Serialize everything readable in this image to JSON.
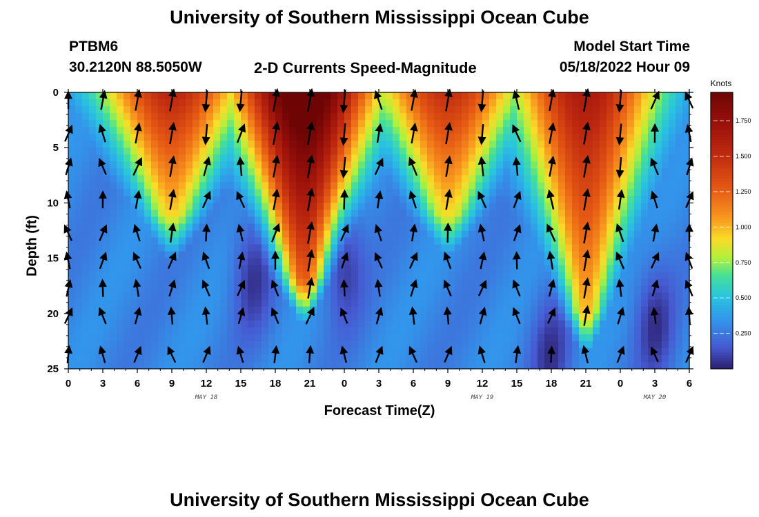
{
  "page": {
    "title_top": "University of Southern Mississippi Ocean Cube",
    "title_bottom": "University of Southern Mississippi Ocean Cube",
    "station": "PTBM6",
    "coords": "30.2120N  88.5050W",
    "plot_title": "2-D Currents Speed-Magnitude",
    "model_start_label": "Model Start Time",
    "model_start_value": "05/18/2022 Hour 09"
  },
  "chart_data": {
    "type": "heatmap",
    "xlabel": "Forecast Time(Z)",
    "ylabel": "Depth (ft)",
    "colorbar_label": "Knots",
    "colorbar_ticks": [
      "0.250",
      "0.500",
      "0.750",
      "1.000",
      "1.250",
      "1.500",
      "1.750"
    ],
    "colorbar_range": [
      0,
      1.95
    ],
    "x_range_hours": [
      0,
      54
    ],
    "x_tick_labels": [
      "0",
      "3",
      "6",
      "9",
      "12",
      "15",
      "18",
      "21",
      "0",
      "3",
      "6",
      "9",
      "12",
      "15",
      "18",
      "21",
      "0",
      "3",
      "6"
    ],
    "date_labels": [
      {
        "hour": 12,
        "text": "MAY 18"
      },
      {
        "hour": 36,
        "text": "MAY 19"
      },
      {
        "hour": 51,
        "text": "MAY 20"
      }
    ],
    "y_range": [
      0,
      25
    ],
    "y_tick_labels": [
      "0",
      "5",
      "10",
      "15",
      "20",
      "25"
    ],
    "arrow_times": [
      0,
      3,
      6,
      9,
      12,
      15,
      18,
      21,
      24,
      27,
      30,
      33,
      36,
      39,
      42,
      45,
      48,
      51,
      54
    ],
    "arrow_depths": [
      0,
      3,
      6,
      9,
      12,
      14.5,
      17,
      19.5,
      23
    ],
    "peaks": [
      {
        "time": 9,
        "max_speed": 1.35,
        "min_depth": 0,
        "max_depth": 11
      },
      {
        "time": 20.5,
        "max_speed": 1.95,
        "min_depth": 0,
        "max_depth": 17
      },
      {
        "time": 33,
        "max_speed": 1.3,
        "min_depth": 0,
        "max_depth": 11
      },
      {
        "time": 45,
        "max_speed": 1.45,
        "min_depth": 0,
        "max_depth": 20
      }
    ]
  }
}
